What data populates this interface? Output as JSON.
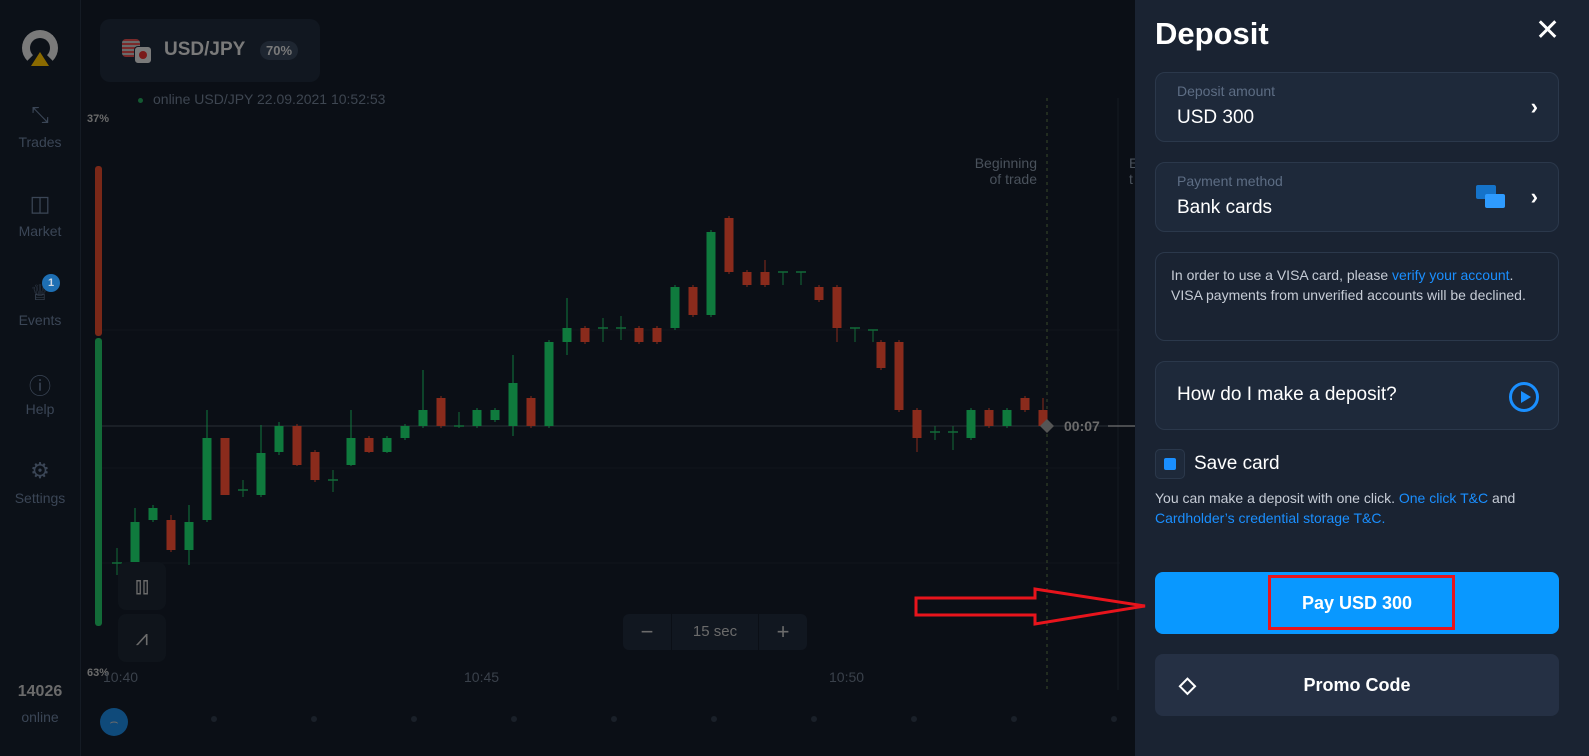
{
  "sidebar": {
    "items": [
      {
        "label": "Trades",
        "icon": "arrows-icon"
      },
      {
        "label": "Market",
        "icon": "bag-icon"
      },
      {
        "label": "Events",
        "icon": "trophy-icon",
        "badge": "1"
      },
      {
        "label": "Help",
        "icon": "help-icon"
      },
      {
        "label": "Settings",
        "icon": "gear-icon"
      }
    ],
    "online_count": "14026",
    "online_label": "online"
  },
  "asset": {
    "name": "USD/JPY",
    "payout": "70%",
    "status": "online USD/JPY  22.09.2021 10:52:53"
  },
  "chart": {
    "top_pct": "37%",
    "bottom_pct": "63%",
    "time_labels": [
      "10:40",
      "10:45",
      "10:50"
    ],
    "timeframe": "15 sec",
    "minus": "−",
    "plus": "+",
    "beginning_label": "Beginning of trade",
    "end_label_partial": "E t",
    "timer": "00:07"
  },
  "deposit": {
    "title": "Deposit",
    "close": "✕",
    "amount_label": "Deposit amount",
    "amount_value": "USD 300",
    "method_label": "Payment method",
    "method_value": "Bank cards",
    "note_pre": "In order to use a VISA card, please ",
    "note_link": "verify your account",
    "note_post": ". VISA payments from unverified accounts will be declined.",
    "how_label": "How do I make a deposit?",
    "save_card": "Save card",
    "info_pre": "You can make a deposit with one click. ",
    "info_link1": "One click T&C",
    "info_mid": " and ",
    "info_link2": "Cardholder’s credential storage T&C.",
    "pay_label": "Pay USD 300",
    "promo_label": "Promo Code"
  },
  "colors": {
    "accent": "#0998ff",
    "panel": "#1a2332",
    "up": "#0f7a3d",
    "down": "#8a2b1c",
    "annotation": "#e8141c"
  }
}
